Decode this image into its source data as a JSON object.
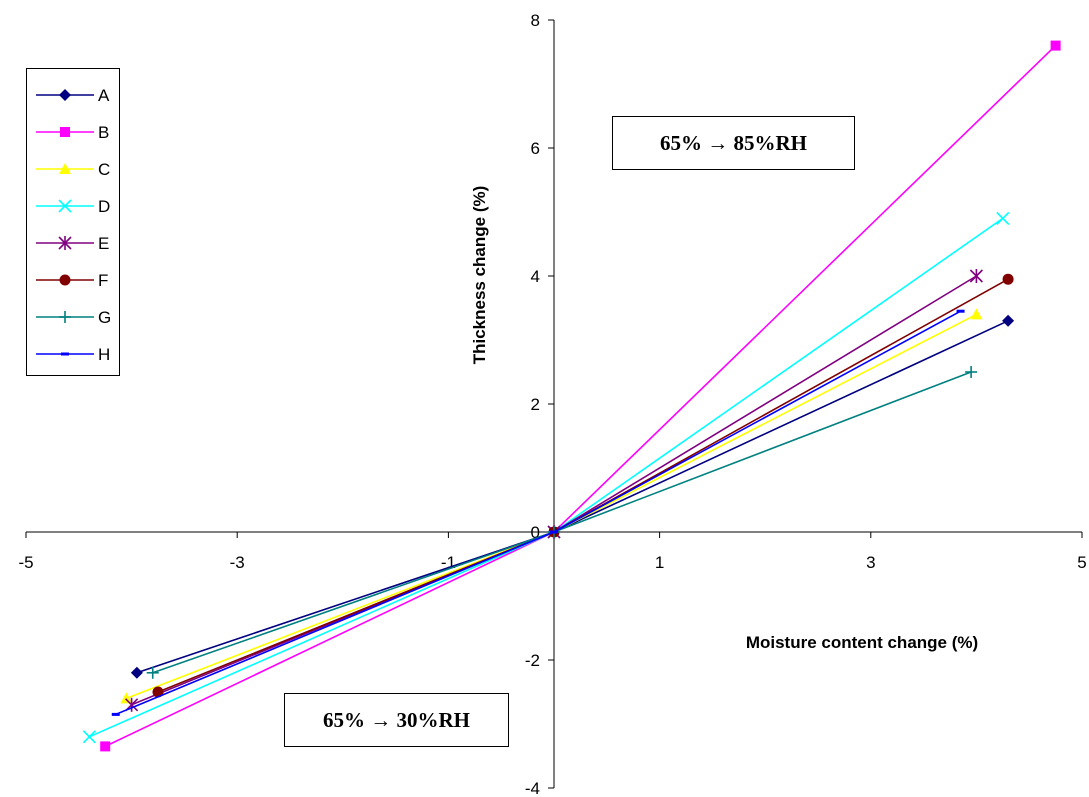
{
  "chart_data": {
    "type": "line",
    "xlabel": "Moisture content change (%)",
    "ylabel": "Thickness change (%)",
    "xlim": [
      -5,
      5
    ],
    "ylim": [
      -4,
      8
    ],
    "x_ticks": [
      "-5",
      "-3",
      "-1",
      "1",
      "3",
      "5"
    ],
    "y_ticks": [
      "-4",
      "-2",
      "0",
      "2",
      "4",
      "6",
      "8"
    ],
    "legend_position": "upper-left",
    "annotations": [
      "65% → 85%RH",
      "65% → 30%RH"
    ],
    "series": [
      {
        "name": "A",
        "color": "#000080",
        "marker": "diamond",
        "x": [
          -3.95,
          0,
          4.3
        ],
        "y": [
          -2.2,
          0,
          3.3
        ]
      },
      {
        "name": "B",
        "color": "#FF00FF",
        "marker": "square",
        "x": [
          -4.25,
          0,
          4.75
        ],
        "y": [
          -3.35,
          0,
          7.6
        ]
      },
      {
        "name": "C",
        "color": "#FFFF00",
        "marker": "triangle",
        "x": [
          -4.05,
          0,
          4.0
        ],
        "y": [
          -2.6,
          0,
          3.4
        ]
      },
      {
        "name": "D",
        "color": "#00FFFF",
        "marker": "x",
        "x": [
          -4.4,
          0,
          4.25
        ],
        "y": [
          -3.2,
          0,
          4.9
        ]
      },
      {
        "name": "E",
        "color": "#800080",
        "marker": "asterisk",
        "x": [
          -4.0,
          0,
          4.0
        ],
        "y": [
          -2.7,
          0,
          4.0
        ]
      },
      {
        "name": "F",
        "color": "#800000",
        "marker": "circle",
        "x": [
          -3.75,
          0,
          4.3
        ],
        "y": [
          -2.5,
          0,
          3.95
        ]
      },
      {
        "name": "G",
        "color": "#008080",
        "marker": "plus",
        "x": [
          -3.8,
          0,
          3.95
        ],
        "y": [
          -2.2,
          0,
          2.5
        ]
      },
      {
        "name": "H",
        "color": "#0000FF",
        "marker": "dash",
        "x": [
          -4.15,
          0,
          3.85
        ],
        "y": [
          -2.85,
          0,
          3.45
        ]
      }
    ]
  }
}
